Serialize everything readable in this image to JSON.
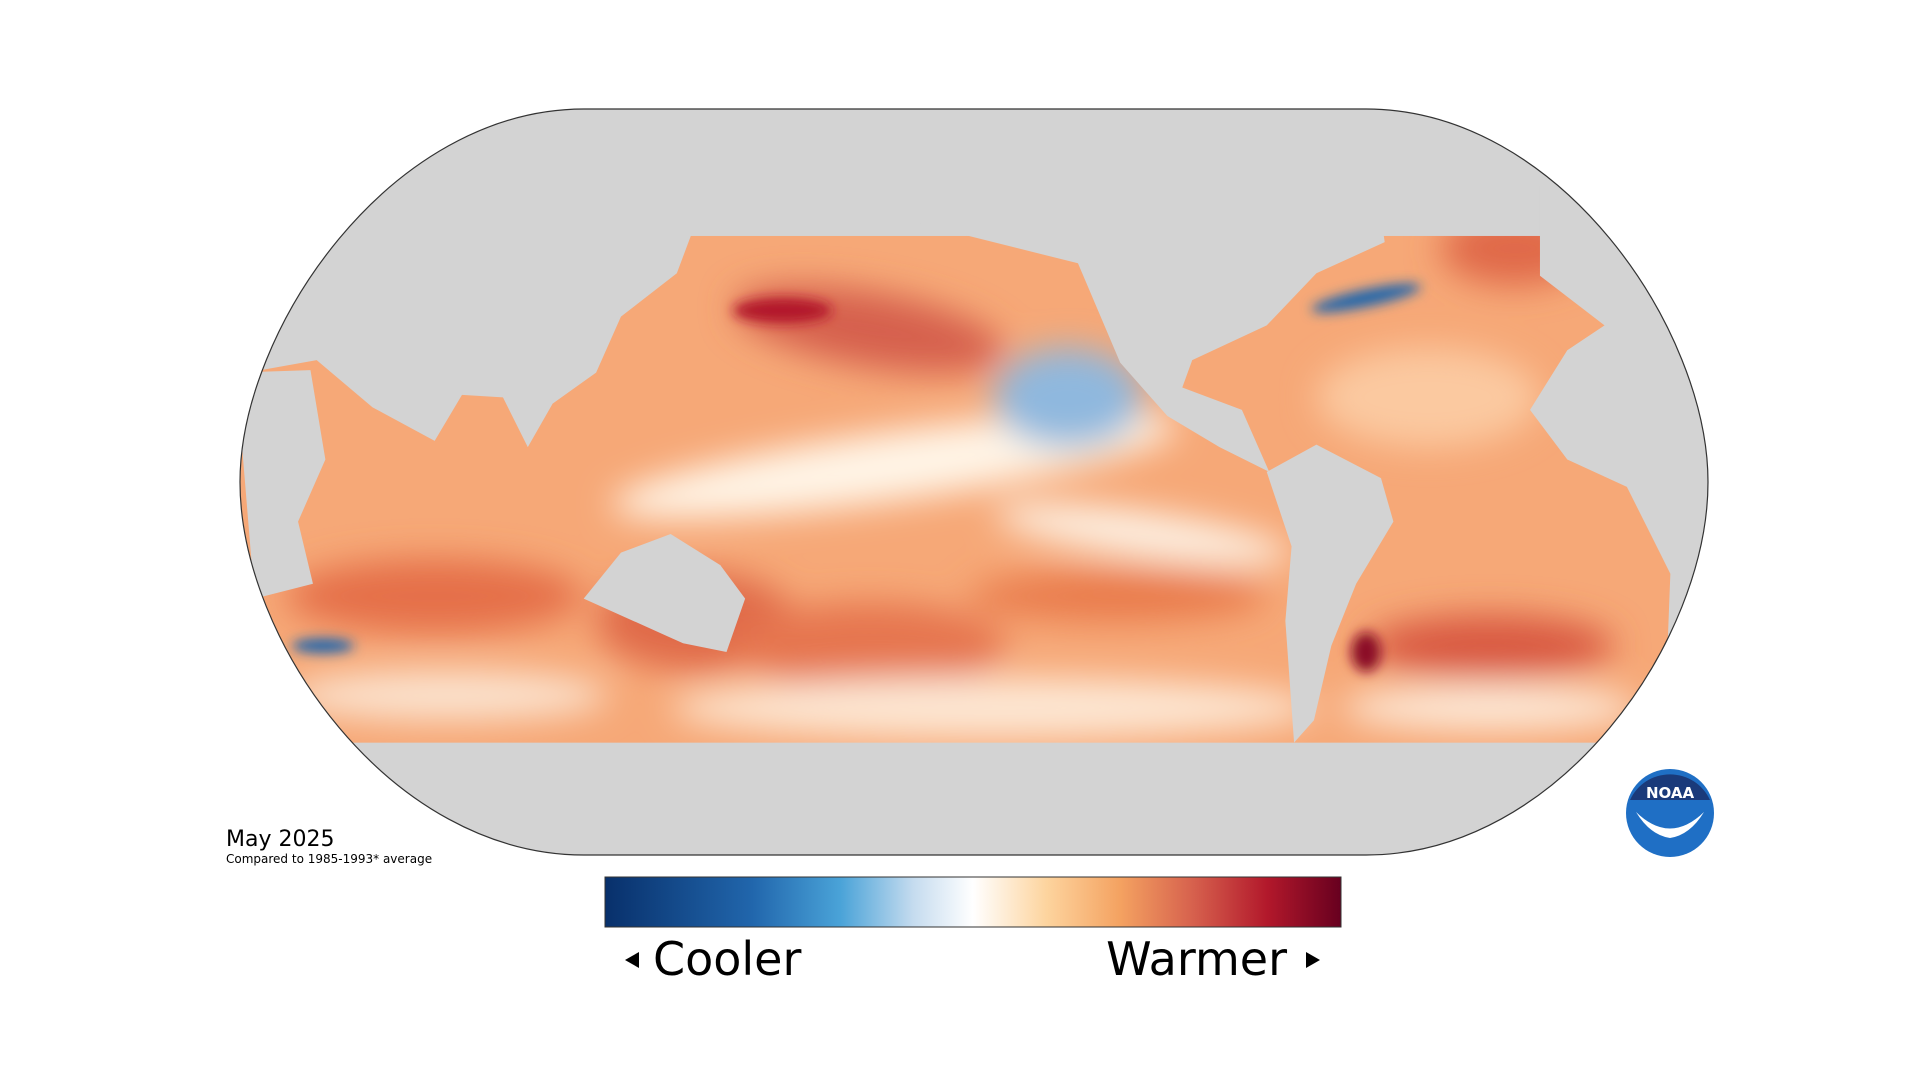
{
  "title": "May 2025",
  "subtitle": "Compared to 1985-1993* average",
  "legend": {
    "low_label": "Cooler",
    "high_label": "Warmer"
  },
  "logo": {
    "text": "NOAA"
  }
}
